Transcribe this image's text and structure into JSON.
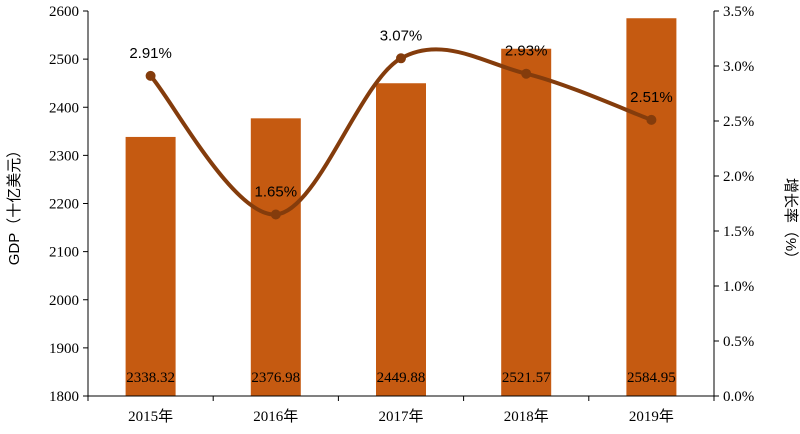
{
  "chart_data": {
    "type": "bar",
    "categories": [
      "2015年",
      "2016年",
      "2017年",
      "2018年",
      "2019年"
    ],
    "series": [
      {
        "axis": "left",
        "type": "bar",
        "color": "#C55A11",
        "values": [
          2338.32,
          2376.98,
          2449.88,
          2521.57,
          2584.95
        ],
        "labels": [
          "2338.32",
          "2376.98",
          "2449.88",
          "2521.57",
          "2584.95"
        ]
      },
      {
        "axis": "right",
        "type": "line",
        "smooth": true,
        "color": "#843C0C",
        "values": [
          2.91,
          1.65,
          3.07,
          2.93,
          2.51
        ],
        "labels": [
          "2.91%",
          "1.65%",
          "3.07%",
          "2.93%",
          "2.51%"
        ]
      }
    ],
    "ylabel": "GDP（十亿美元）",
    "ylabel_right": "增长率（%）",
    "ylim": [
      1800,
      2600
    ],
    "ylim_right": [
      0,
      3.5
    ],
    "yticks": [
      "1800",
      "1900",
      "2000",
      "2100",
      "2200",
      "2300",
      "2400",
      "2500",
      "2600"
    ],
    "yticks_right": [
      "0.0%",
      "0.5%",
      "1.0%",
      "1.5%",
      "2.0%",
      "2.5%",
      "3.0%",
      "3.5%"
    ],
    "grid": false,
    "legend": "none"
  }
}
